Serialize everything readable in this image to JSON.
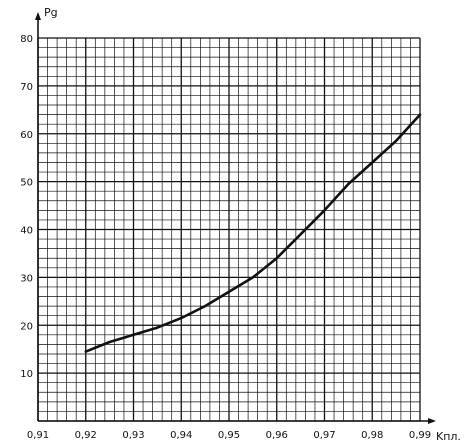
{
  "chart_data": {
    "type": "line",
    "title": "",
    "ylabel": "Pg",
    "xlabel": "Kпл.",
    "xlim": [
      0.91,
      0.99
    ],
    "ylim": [
      0,
      80
    ],
    "x_ticks": [
      "0,91",
      "0,92",
      "0,93",
      "0,94",
      "0,95",
      "0,96",
      "0,97",
      "0,98",
      "0,99"
    ],
    "y_ticks": [
      "10",
      "20",
      "30",
      "40",
      "50",
      "60",
      "70",
      "80"
    ],
    "grid": true,
    "grid_minor_x_step": 0.002,
    "grid_minor_y_step": 2,
    "colors": {
      "line": "#111111",
      "grid": "#111111",
      "background": "#ffffff"
    },
    "series": [
      {
        "x": [
          0.92,
          0.925,
          0.93,
          0.935,
          0.94,
          0.945,
          0.95,
          0.955,
          0.96,
          0.965,
          0.97,
          0.975,
          0.98,
          0.985,
          0.99
        ],
        "y": [
          14.5,
          16.5,
          18,
          19.5,
          21.5,
          24,
          27,
          30,
          34,
          39,
          44,
          49.5,
          54,
          58.5,
          64
        ]
      }
    ]
  }
}
